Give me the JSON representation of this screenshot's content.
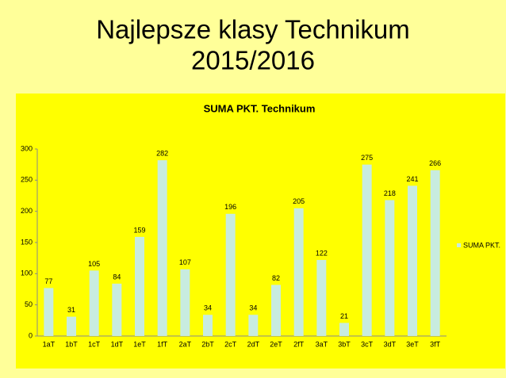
{
  "slide_title": [
    "Najlepsze klasy Technikum",
    "2015/2016"
  ],
  "chart_data": {
    "type": "bar",
    "title": "SUMA PKT. Technikum",
    "categories": [
      "1aT",
      "1bT",
      "1cT",
      "1dT",
      "1eT",
      "1fT",
      "2aT",
      "2bT",
      "2cT",
      "2dT",
      "2eT",
      "2fT",
      "3aT",
      "3bT",
      "3cT",
      "3dT",
      "3eT",
      "3fT"
    ],
    "series": [
      {
        "name": "SUMA PKT.",
        "color": "#c8ecdf",
        "values": [
          77,
          31,
          105,
          84,
          159,
          282,
          107,
          34,
          196,
          34,
          82,
          205,
          122,
          21,
          275,
          218,
          241,
          266
        ]
      }
    ],
    "ylim": [
      0,
      300
    ],
    "yticks": [
      0,
      50,
      100,
      150,
      200,
      250,
      300
    ],
    "grid": false,
    "legend": "right",
    "show_values": true
  }
}
